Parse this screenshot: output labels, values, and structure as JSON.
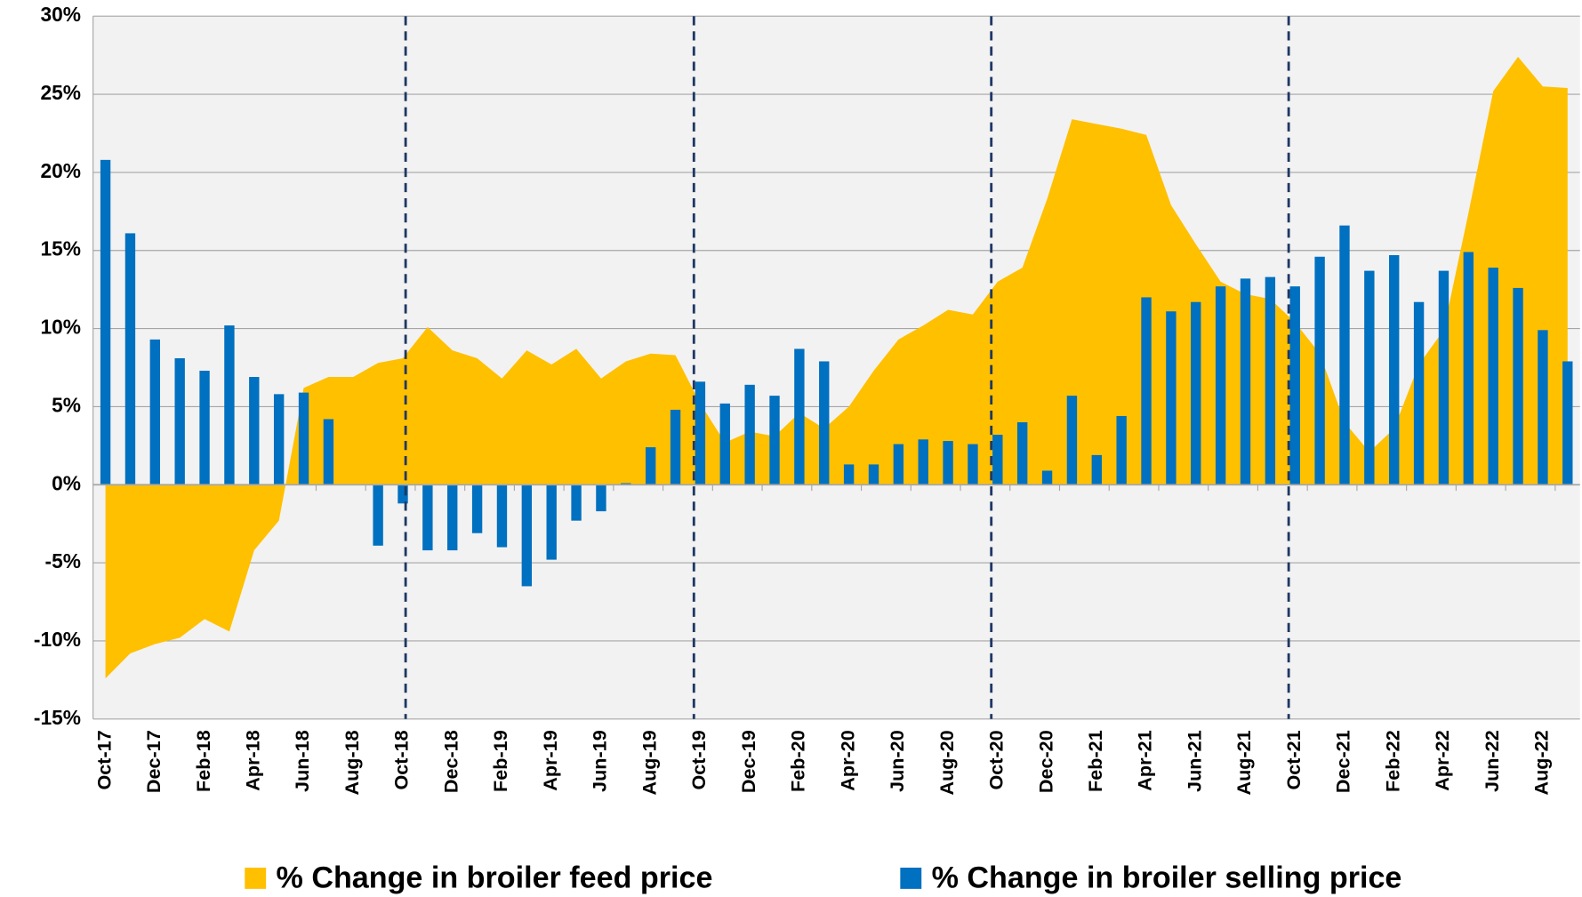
{
  "chart_data": {
    "type": "combo",
    "categories": [
      "Oct-17",
      null,
      "Dec-17",
      null,
      "Feb-18",
      null,
      "Apr-18",
      null,
      "Jun-18",
      null,
      "Aug-18",
      null,
      "Oct-18",
      null,
      "Dec-18",
      null,
      "Feb-19",
      null,
      "Apr-19",
      null,
      "Jun-19",
      null,
      "Aug-19",
      null,
      "Oct-19",
      null,
      "Dec-19",
      null,
      "Feb-20",
      null,
      "Apr-20",
      null,
      "Jun-20",
      null,
      "Aug-20",
      null,
      "Oct-20",
      null,
      "Dec-20",
      null,
      "Feb-21",
      null,
      "Apr-21",
      null,
      "Jun-21",
      null,
      "Aug-21",
      null,
      "Oct-21",
      null,
      "Dec-21",
      null,
      "Feb-22",
      null,
      "Apr-22",
      null,
      "Jun-22",
      null,
      "Aug-22",
      null
    ],
    "series": [
      {
        "name": "% Change in broiler feed price",
        "type": "area",
        "color": "#ffc000",
        "values": [
          -12.4,
          -10.8,
          -10.2,
          -9.8,
          -8.6,
          -9.4,
          -4.2,
          -2.3,
          6.2,
          6.9,
          6.9,
          7.8,
          8.1,
          10.1,
          8.6,
          8.1,
          6.8,
          8.6,
          7.7,
          8.7,
          6.8,
          7.9,
          8.4,
          8.3,
          5.2,
          2.7,
          3.4,
          3.1,
          4.6,
          3.6,
          5.0,
          7.3,
          9.3,
          10.2,
          11.2,
          10.9,
          13.0,
          13.9,
          18.3,
          23.4,
          23.1,
          22.8,
          22.4,
          17.9,
          15.4,
          13.0,
          12.2,
          11.9,
          10.4,
          8.4,
          4.0,
          2.1,
          3.6,
          7.7,
          9.9,
          17.4,
          25.2,
          27.4,
          25.5,
          25.4
        ]
      },
      {
        "name": "% Change in broiler selling price",
        "type": "bar",
        "color": "#0070c0",
        "values": [
          20.8,
          16.1,
          9.3,
          8.1,
          7.3,
          10.2,
          6.9,
          5.8,
          5.9,
          4.2,
          0,
          -3.9,
          -1.2,
          -4.2,
          -4.2,
          -3.1,
          -4.0,
          -6.5,
          -4.8,
          -2.3,
          -1.7,
          0.1,
          2.4,
          4.8,
          6.6,
          5.2,
          6.4,
          5.7,
          8.7,
          7.9,
          1.3,
          1.3,
          2.6,
          2.9,
          2.8,
          2.6,
          3.2,
          4.0,
          0.9,
          5.7,
          1.9,
          4.4,
          12.0,
          11.1,
          11.7,
          12.7,
          13.2,
          13.3,
          12.7,
          14.6,
          16.6,
          13.7,
          14.7,
          11.7,
          13.7,
          14.9,
          13.9,
          12.6,
          9.9,
          7.9
        ]
      }
    ],
    "ylim": [
      -15,
      30
    ],
    "yticks": [
      {
        "value": -15,
        "label": "-15%"
      },
      {
        "value": -10,
        "label": "-10%"
      },
      {
        "value": -5,
        "label": "-5%"
      },
      {
        "value": 0,
        "label": "0%"
      },
      {
        "value": 5,
        "label": "5%"
      },
      {
        "value": 10,
        "label": "10%"
      },
      {
        "value": 15,
        "label": "15%"
      },
      {
        "value": 20,
        "label": "20%"
      },
      {
        "value": 25,
        "label": "25%"
      },
      {
        "value": 30,
        "label": "30%"
      }
    ],
    "grid": true,
    "legend": "bottom"
  }
}
